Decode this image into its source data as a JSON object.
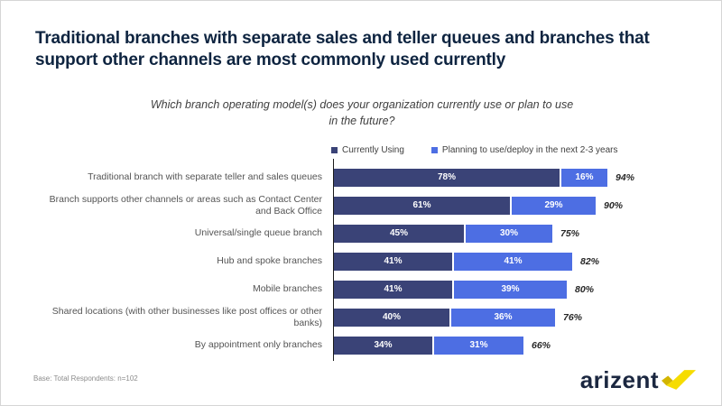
{
  "slide": {
    "title": "Traditional branches with separate sales and teller queues and branches that support other channels are most commonly used currently",
    "question": "Which branch operating model(s) does your organization currently use or plan to use in the future?",
    "footnote": "Base: Total Respondents: n=102",
    "logo_text": "arizent",
    "logo_mark_color": "#F6DC00",
    "logo_mark_shadow_color": "#D3B500"
  },
  "chart_data": {
    "type": "bar",
    "orientation": "horizontal",
    "stacked": true,
    "legend_position": "top",
    "grid": false,
    "xlim": [
      0,
      100
    ],
    "unit": "%",
    "title": "Which branch operating model(s) does your organization currently use or plan to use in the future?",
    "categories": [
      "Traditional branch with separate teller and sales queues",
      "Branch supports other channels or areas such as Contact Center and Back Office",
      "Universal/single queue branch",
      "Hub and spoke branches",
      "Mobile branches",
      "Shared locations (with other businesses like post offices or other banks)",
      "By appointment only branches"
    ],
    "series": [
      {
        "name": "Currently Using",
        "color": "#3A4377",
        "values": [
          78,
          61,
          45,
          41,
          41,
          40,
          34
        ]
      },
      {
        "name": "Planning to use/deploy in the next 2-3 years",
        "color": "#4D6EE3",
        "values": [
          16,
          29,
          30,
          41,
          39,
          36,
          31
        ]
      }
    ],
    "totals": [
      94,
      90,
      75,
      82,
      80,
      76,
      66
    ]
  }
}
